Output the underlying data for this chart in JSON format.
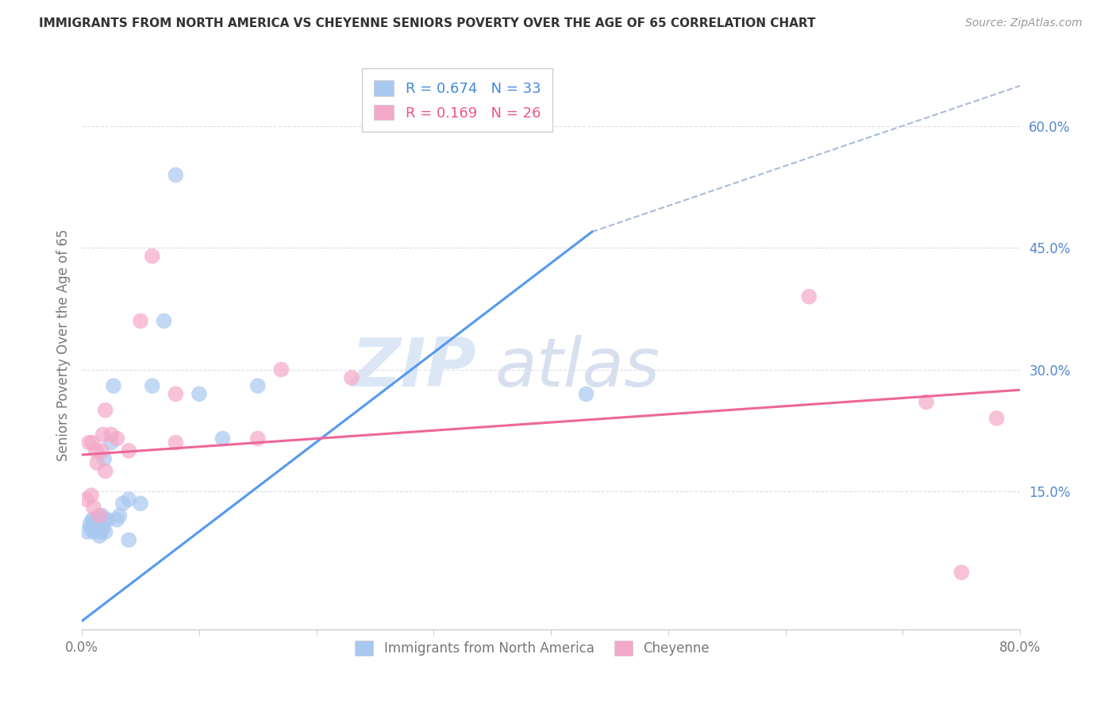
{
  "title": "IMMIGRANTS FROM NORTH AMERICA VS CHEYENNE SENIORS POVERTY OVER THE AGE OF 65 CORRELATION CHART",
  "source": "Source: ZipAtlas.com",
  "xlabel": "",
  "ylabel": "Seniors Poverty Over the Age of 65",
  "xlim": [
    0.0,
    0.8
  ],
  "ylim": [
    -0.02,
    0.68
  ],
  "xticks": [
    0.0,
    0.1,
    0.2,
    0.3,
    0.4,
    0.5,
    0.6,
    0.7,
    0.8
  ],
  "xticklabels": [
    "0.0%",
    "",
    "",
    "",
    "",
    "",
    "",
    "",
    "80.0%"
  ],
  "right_yticks": [
    0.15,
    0.3,
    0.45,
    0.6
  ],
  "right_yticklabels": [
    "15.0%",
    "30.0%",
    "45.0%",
    "60.0%"
  ],
  "blue_color": "#a8c8f0",
  "pink_color": "#f4a8c8",
  "blue_line_color": "#5599ee",
  "pink_line_color": "#ee6699",
  "ref_line_color": "#aabbd8",
  "legend_r_blue": "0.674",
  "legend_n_blue": "33",
  "legend_r_pink": "0.169",
  "legend_n_pink": "26",
  "watermark_zip": "ZIP",
  "watermark_atlas": "atlas",
  "blue_scatter_x": [
    0.005,
    0.007,
    0.008,
    0.009,
    0.01,
    0.01,
    0.012,
    0.013,
    0.014,
    0.015,
    0.015,
    0.016,
    0.017,
    0.018,
    0.019,
    0.02,
    0.02,
    0.022,
    0.025,
    0.027,
    0.03,
    0.032,
    0.035,
    0.04,
    0.04,
    0.05,
    0.06,
    0.07,
    0.08,
    0.1,
    0.12,
    0.15,
    0.43
  ],
  "blue_scatter_y": [
    0.1,
    0.11,
    0.105,
    0.115,
    0.1,
    0.115,
    0.105,
    0.11,
    0.115,
    0.095,
    0.105,
    0.1,
    0.12,
    0.105,
    0.19,
    0.1,
    0.115,
    0.115,
    0.21,
    0.28,
    0.115,
    0.12,
    0.135,
    0.09,
    0.14,
    0.135,
    0.28,
    0.36,
    0.54,
    0.27,
    0.215,
    0.28,
    0.27
  ],
  "pink_scatter_x": [
    0.004,
    0.006,
    0.008,
    0.009,
    0.01,
    0.012,
    0.013,
    0.015,
    0.017,
    0.018,
    0.02,
    0.02,
    0.025,
    0.03,
    0.04,
    0.05,
    0.06,
    0.08,
    0.08,
    0.15,
    0.17,
    0.23,
    0.62,
    0.72,
    0.75,
    0.78
  ],
  "pink_scatter_y": [
    0.14,
    0.21,
    0.145,
    0.21,
    0.13,
    0.2,
    0.185,
    0.12,
    0.2,
    0.22,
    0.175,
    0.25,
    0.22,
    0.215,
    0.2,
    0.36,
    0.44,
    0.21,
    0.27,
    0.215,
    0.3,
    0.29,
    0.39,
    0.26,
    0.05,
    0.24
  ],
  "blue_line": {
    "x0": 0.0,
    "y0": -0.01,
    "x1": 0.435,
    "y1": 0.47
  },
  "ref_line": {
    "x0": 0.435,
    "y0": 0.47,
    "x1": 0.8,
    "y1": 0.65
  },
  "pink_line": {
    "x0": 0.0,
    "y0": 0.195,
    "x1": 0.8,
    "y1": 0.275
  }
}
